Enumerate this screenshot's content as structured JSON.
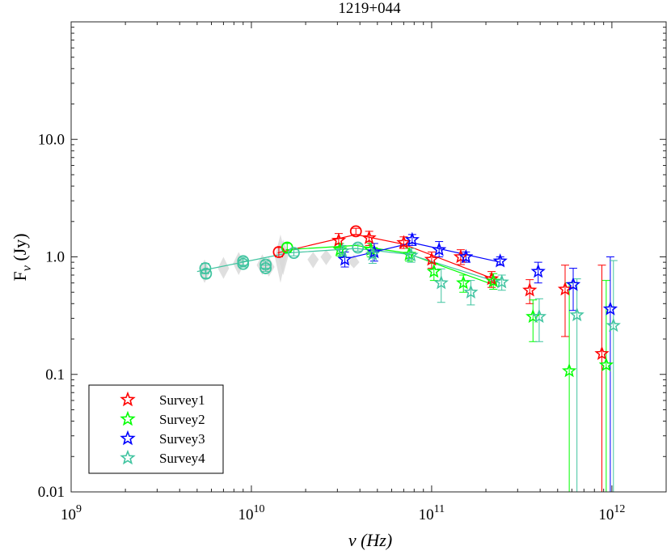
{
  "chart_data": {
    "type": "scatter",
    "title": "1219+044",
    "xlabel": "ν (Hz)",
    "ylabel": "Fν (Jy)",
    "xscale": "log",
    "yscale": "log",
    "xlim": [
      1000000000.0,
      2000000000000.0
    ],
    "ylim": [
      0.01,
      100
    ],
    "x_ticks": [
      1000000000.0,
      10000000000.0,
      100000000000.0,
      1000000000000.0
    ],
    "x_tick_labels": [
      {
        "base": "10",
        "exp": "9"
      },
      {
        "base": "10",
        "exp": "10"
      },
      {
        "base": "10",
        "exp": "11"
      },
      {
        "base": "10",
        "exp": "12"
      }
    ],
    "y_ticks": [
      0.01,
      0.1,
      1.0,
      10.0
    ],
    "y_tick_labels": [
      "0.01",
      "0.1",
      "1.0",
      "10.0"
    ],
    "legend_position": "bottom-left",
    "background_data": [
      {
        "x": 5500000000.0,
        "y": 0.75,
        "lo": 0.6,
        "hi": 0.95
      },
      {
        "x": 7000000000.0,
        "y": 0.8,
        "lo": 0.65,
        "hi": 1.0
      },
      {
        "x": 8500000000.0,
        "y": 0.88,
        "lo": 0.7,
        "hi": 1.1
      },
      {
        "x": 11500000000.0,
        "y": 0.85,
        "lo": 0.7,
        "hi": 1.05
      },
      {
        "x": 12500000000.0,
        "y": 0.82,
        "lo": 0.68,
        "hi": 1.0
      },
      {
        "x": 14500000000.0,
        "y": 1.0,
        "lo": 0.6,
        "hi": 1.55
      },
      {
        "x": 15000000000.0,
        "y": 1.05,
        "lo": 0.7,
        "hi": 1.4
      },
      {
        "x": 22000000000.0,
        "y": 0.95,
        "lo": 0.8,
        "hi": 1.1
      },
      {
        "x": 26000000000.0,
        "y": 1.0,
        "lo": 0.85,
        "hi": 1.15
      },
      {
        "x": 37000000000.0,
        "y": 0.9,
        "lo": 0.8,
        "hi": 1.05
      }
    ],
    "series": [
      {
        "name": "Survey1",
        "color": "#ff0000",
        "fit": [
          [
            14000000000.0,
            1.08
          ],
          [
            38000000000.0,
            1.55
          ],
          [
            70000000000.0,
            1.28
          ],
          [
            220000000000.0,
            0.65
          ]
        ],
        "circles": [
          {
            "x": 14200000000.0,
            "y": 1.1,
            "lo": 1.0,
            "hi": 1.2
          },
          {
            "x": 38000000000.0,
            "y": 1.65,
            "lo": 1.55,
            "hi": 1.75
          }
        ],
        "stars": [
          {
            "x": 30500000000.0,
            "y": 1.38,
            "lo": 1.2,
            "hi": 1.58
          },
          {
            "x": 45000000000.0,
            "y": 1.45,
            "lo": 1.25,
            "hi": 1.65
          },
          {
            "x": 70000000000.0,
            "y": 1.32,
            "lo": 1.18,
            "hi": 1.48
          },
          {
            "x": 100000000000.0,
            "y": 0.95,
            "lo": 0.8,
            "hi": 1.1
          },
          {
            "x": 145000000000.0,
            "y": 1.0,
            "lo": 0.86,
            "hi": 1.15
          },
          {
            "x": 215000000000.0,
            "y": 0.65,
            "lo": 0.55,
            "hi": 0.75
          },
          {
            "x": 350000000000.0,
            "y": 0.52,
            "lo": 0.4,
            "hi": 0.64
          },
          {
            "x": 550000000000.0,
            "y": 0.53,
            "lo": 0.21,
            "hi": 0.85
          },
          {
            "x": 880000000000.0,
            "y": 0.15,
            "lo": 0.001,
            "hi": 0.85
          }
        ]
      },
      {
        "name": "Survey2",
        "color": "#00ff00",
        "fit": [
          [
            15500000000.0,
            1.15
          ],
          [
            38000000000.0,
            1.25
          ],
          [
            72000000000.0,
            1.08
          ],
          [
            220000000000.0,
            0.58
          ]
        ],
        "circles": [
          {
            "x": 15800000000.0,
            "y": 1.2,
            "lo": 1.1,
            "hi": 1.3
          }
        ],
        "stars": [
          {
            "x": 31000000000.0,
            "y": 1.15,
            "lo": 1.02,
            "hi": 1.3
          },
          {
            "x": 46000000000.0,
            "y": 1.15,
            "lo": 1.0,
            "hi": 1.3
          },
          {
            "x": 75000000000.0,
            "y": 1.05,
            "lo": 0.92,
            "hi": 1.18
          },
          {
            "x": 103000000000.0,
            "y": 0.75,
            "lo": 0.63,
            "hi": 0.88
          },
          {
            "x": 150000000000.0,
            "y": 0.6,
            "lo": 0.5,
            "hi": 0.7
          },
          {
            "x": 220000000000.0,
            "y": 0.62,
            "lo": 0.53,
            "hi": 0.72
          },
          {
            "x": 365000000000.0,
            "y": 0.31,
            "lo": 0.19,
            "hi": 0.43
          },
          {
            "x": 580000000000.0,
            "y": 0.107,
            "lo": 0.001,
            "hi": 0.6
          },
          {
            "x": 930000000000.0,
            "y": 0.12,
            "lo": 0.001,
            "hi": 0.63
          }
        ]
      },
      {
        "name": "Survey3",
        "color": "#0000ff",
        "fit": [
          [
            35000000000.0,
            0.98
          ],
          [
            78000000000.0,
            1.32
          ],
          [
            240000000000.0,
            0.9
          ]
        ],
        "circles": [],
        "stars": [
          {
            "x": 33000000000.0,
            "y": 0.95,
            "lo": 0.82,
            "hi": 1.1
          },
          {
            "x": 48000000000.0,
            "y": 1.1,
            "lo": 0.92,
            "hi": 1.3
          },
          {
            "x": 78000000000.0,
            "y": 1.4,
            "lo": 1.25,
            "hi": 1.55
          },
          {
            "x": 110000000000.0,
            "y": 1.15,
            "lo": 1.0,
            "hi": 1.35
          },
          {
            "x": 155000000000.0,
            "y": 1.0,
            "lo": 0.9,
            "hi": 1.1
          },
          {
            "x": 240000000000.0,
            "y": 0.92,
            "lo": 0.85,
            "hi": 1.0
          },
          {
            "x": 390000000000.0,
            "y": 0.75,
            "lo": 0.6,
            "hi": 0.9
          },
          {
            "x": 610000000000.0,
            "y": 0.58,
            "lo": 0.35,
            "hi": 0.8
          },
          {
            "x": 980000000000.0,
            "y": 0.36,
            "lo": 0.001,
            "hi": 1.0
          }
        ]
      },
      {
        "name": "Survey4",
        "color": "#40c4a0",
        "fit": [
          [
            5000000000.0,
            0.75
          ],
          [
            16000000000.0,
            1.08
          ],
          [
            38000000000.0,
            1.18
          ],
          [
            75000000000.0,
            1.05
          ],
          [
            240000000000.0,
            0.6
          ]
        ],
        "circles": [
          {
            "x": 5550000000.0,
            "y": 0.8,
            "lo": 0.72,
            "hi": 0.88
          },
          {
            "x": 5600000000.0,
            "y": 0.72,
            "lo": 0.66,
            "hi": 0.78
          },
          {
            "x": 9000000000.0,
            "y": 0.92,
            "lo": 0.85,
            "hi": 0.99
          },
          {
            "x": 9000000000.0,
            "y": 0.87,
            "lo": 0.82,
            "hi": 0.92
          },
          {
            "x": 12000000000.0,
            "y": 0.86,
            "lo": 0.8,
            "hi": 0.92
          },
          {
            "x": 12000000000.0,
            "y": 0.8,
            "lo": 0.75,
            "hi": 0.85
          },
          {
            "x": 17200000000.0,
            "y": 1.08,
            "lo": 1.02,
            "hi": 1.15
          },
          {
            "x": 39000000000.0,
            "y": 1.2,
            "lo": 1.12,
            "hi": 1.28
          }
        ],
        "stars": [
          {
            "x": 32000000000.0,
            "y": 1.12,
            "lo": 1.0,
            "hi": 1.25
          },
          {
            "x": 47000000000.0,
            "y": 1.05,
            "lo": 0.88,
            "hi": 1.2
          },
          {
            "x": 77000000000.0,
            "y": 1.03,
            "lo": 0.9,
            "hi": 1.18
          },
          {
            "x": 113000000000.0,
            "y": 0.6,
            "lo": 0.41,
            "hi": 0.79
          },
          {
            "x": 165000000000.0,
            "y": 0.5,
            "lo": 0.39,
            "hi": 0.63
          },
          {
            "x": 245000000000.0,
            "y": 0.61,
            "lo": 0.52,
            "hi": 0.7
          },
          {
            "x": 395000000000.0,
            "y": 0.31,
            "lo": 0.19,
            "hi": 0.44
          },
          {
            "x": 640000000000.0,
            "y": 0.32,
            "lo": 0.001,
            "hi": 0.65
          },
          {
            "x": 1020000000000.0,
            "y": 0.26,
            "lo": 0.001,
            "hi": 0.93
          }
        ]
      }
    ]
  }
}
